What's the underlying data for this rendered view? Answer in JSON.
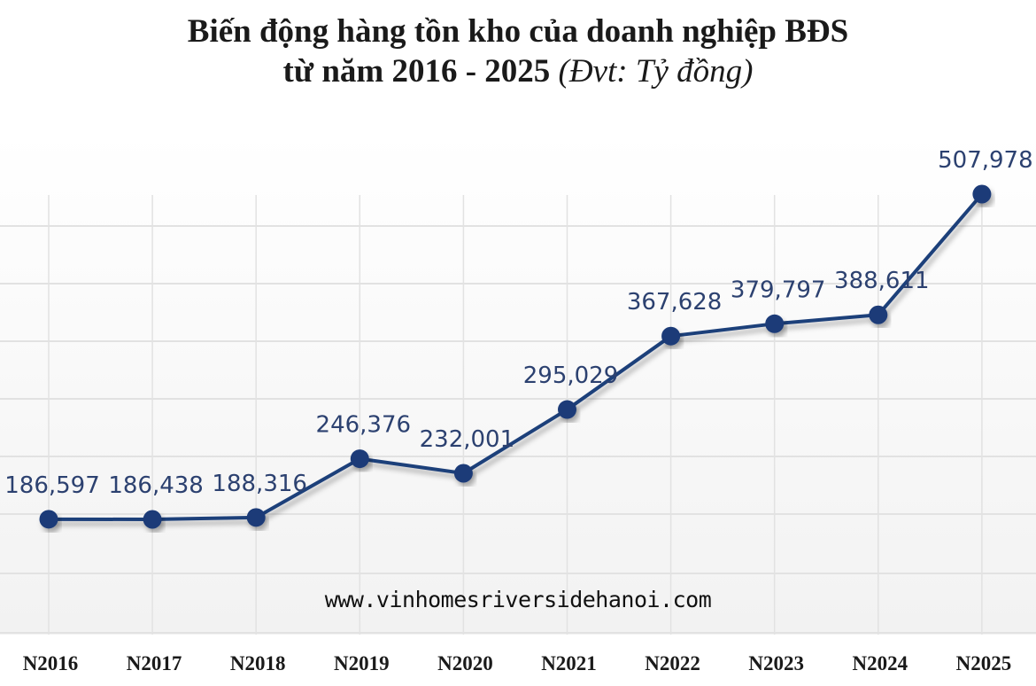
{
  "chart_data": {
    "type": "line",
    "title": "Biến động hàng tồn kho của doanh nghiệp BĐS",
    "subtitle": "từ năm 2016 - 2025",
    "unit": "(Đvt: Tỷ đồng)",
    "xlabel": "",
    "ylabel": "",
    "categories": [
      "N2016",
      "N2017",
      "N2018",
      "N2019",
      "N2020",
      "N2021",
      "N2022",
      "N2023",
      "N2024",
      "N2025"
    ],
    "values": [
      186597,
      186438,
      188316,
      246376,
      232001,
      295029,
      367628,
      379797,
      388611,
      507978
    ],
    "data_labels": [
      "186,597",
      "186,438",
      "188,316",
      "246,376",
      "232,001",
      "295,029",
      "367,628",
      "379,797",
      "388,611",
      "507,978"
    ],
    "grid": true,
    "legend": "none",
    "colors": {
      "line": "#1f3f7a",
      "marker": "#1a3a78",
      "label": "#2c4170",
      "grid": "#e2e2e2",
      "background": "#f7f7f7"
    }
  },
  "watermark": "www.vinhomesriversidehanoi.com"
}
